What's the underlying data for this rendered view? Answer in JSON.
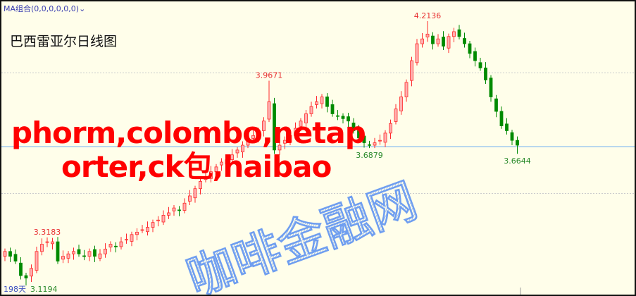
{
  "header": {
    "ma_selector": "MA组合(0,0,0,0,0,0)",
    "ma_chevron_icon": "chevron-down-icon",
    "title": "巴西雷亚尔日线图"
  },
  "overlay_text": {
    "line1": "phorm,colombo,netap",
    "line2": "orter,ck包,haibao"
  },
  "watermark": "咖啡金融网",
  "footer": {
    "period_label": "198天"
  },
  "colors": {
    "background": "#fffeea",
    "up": "#ff2a2a",
    "down": "#008a00",
    "price_line": "#7fb8f0",
    "grid": "#cccccc",
    "watermark": "#6f9ef0",
    "overlay": "#ff0000"
  },
  "chart_data": {
    "type": "candlestick",
    "title": "巴西雷亚尔日线图",
    "ylim": [
      3.0,
      4.25
    ],
    "grid_y": [
      3.5,
      4.0
    ],
    "current_price_line": 3.694,
    "closes": [
      3.26,
      3.24,
      3.22,
      3.16,
      3.15,
      3.19,
      3.26,
      3.29,
      3.3,
      3.3,
      3.22,
      3.24,
      3.25,
      3.26,
      3.25,
      3.24,
      3.26,
      3.24,
      3.25,
      3.27,
      3.29,
      3.28,
      3.3,
      3.31,
      3.33,
      3.34,
      3.35,
      3.36,
      3.38,
      3.39,
      3.41,
      3.42,
      3.44,
      3.43,
      3.46,
      3.49,
      3.52,
      3.55,
      3.57,
      3.59,
      3.61,
      3.63,
      3.64,
      3.66,
      3.68,
      3.7,
      3.72,
      3.74,
      3.76,
      3.8,
      3.88,
      3.68,
      3.7,
      3.72,
      3.74,
      3.77,
      3.8,
      3.83,
      3.86,
      3.88,
      3.9,
      3.86,
      3.83,
      3.82,
      3.81,
      3.8,
      3.76,
      3.73,
      3.71,
      3.7,
      3.71,
      3.72,
      3.75,
      3.79,
      3.85,
      3.9,
      3.96,
      4.05,
      4.12,
      4.14,
      4.16,
      4.12,
      4.14,
      4.11,
      4.15,
      4.17,
      4.15,
      4.12,
      4.08,
      4.05,
      4.02,
      3.97,
      3.9,
      3.84,
      3.78,
      3.76,
      3.72,
      3.7
    ],
    "annotations": [
      {
        "index": 8,
        "value": 3.3183,
        "label": "3.3183",
        "kind": "high"
      },
      {
        "index": 50,
        "value": 3.9671,
        "label": "3.9671",
        "kind": "high"
      },
      {
        "index": 80,
        "value": 4.2136,
        "label": "4.2136",
        "kind": "high"
      },
      {
        "index": 69,
        "value": 3.6879,
        "label": "3.6879",
        "kind": "low"
      },
      {
        "index": 97,
        "value": 3.6644,
        "label": "3.6644",
        "kind": "low"
      },
      {
        "index": 4,
        "value": 3.1194,
        "label": "3.1194",
        "kind": "low"
      }
    ]
  }
}
